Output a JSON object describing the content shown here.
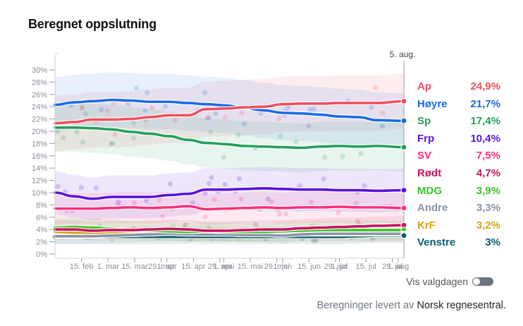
{
  "title": "Beregnet oppslutning",
  "toggle": {
    "label": "Vis valgdagen",
    "on": false
  },
  "credit": {
    "prefix": "Beregninger levert av ",
    "org": "Norsk regnesentral."
  },
  "chart_data": {
    "type": "line",
    "title": "Beregnet oppslutning",
    "xlabel": "",
    "ylabel": "",
    "ylim": [
      0,
      30
    ],
    "yticks": [
      "0%",
      "2%",
      "4%",
      "6%",
      "8%",
      "10%",
      "12%",
      "14%",
      "16%",
      "18%",
      "20%",
      "22%",
      "24%",
      "26%",
      "28%",
      "30%"
    ],
    "x_range_days": [
      0,
      184
    ],
    "xticks": [
      {
        "day": 14,
        "label": "15. feb"
      },
      {
        "day": 28,
        "label": "1. mar"
      },
      {
        "day": 42,
        "label": "15. mar"
      },
      {
        "day": 56,
        "label": "29. mar"
      },
      {
        "day": 59,
        "label": "1. apr"
      },
      {
        "day": 73,
        "label": "15. apr"
      },
      {
        "day": 87,
        "label": "29. apr"
      },
      {
        "day": 89,
        "label": "1. mai"
      },
      {
        "day": 103,
        "label": "15. mai"
      },
      {
        "day": 117,
        "label": "29. mai"
      },
      {
        "day": 120,
        "label": "1. jun"
      },
      {
        "day": 134,
        "label": "15. jun"
      },
      {
        "day": 148,
        "label": "29. jun"
      },
      {
        "day": 150,
        "label": "1. jul"
      },
      {
        "day": 164,
        "label": "15. jul"
      },
      {
        "day": 178,
        "label": "29. jul"
      },
      {
        "day": 181,
        "label": "1. aug"
      }
    ],
    "current_date_label": "5. aug.",
    "current_day": 184,
    "grid": false,
    "legend_position": "right",
    "x": [
      0,
      10,
      20,
      30,
      40,
      50,
      60,
      70,
      80,
      90,
      100,
      110,
      120,
      130,
      140,
      150,
      160,
      170,
      184
    ],
    "series": [
      {
        "name": "Ap",
        "color": "#f04e5e",
        "label": "24,9%",
        "band": 4.5,
        "values": [
          21.3,
          21.5,
          21.9,
          21.9,
          22.0,
          22.3,
          22.6,
          22.6,
          23.6,
          23.7,
          23.9,
          24.0,
          24.4,
          24.5,
          24.5,
          24.6,
          24.6,
          24.6,
          24.9
        ]
      },
      {
        "name": "Høyre",
        "color": "#1a6ae8",
        "label": "21,7%",
        "band": 4.5,
        "values": [
          24.3,
          24.7,
          24.9,
          25.1,
          25.0,
          24.8,
          24.8,
          24.6,
          24.4,
          24.2,
          23.8,
          23.4,
          23.0,
          22.9,
          22.7,
          22.4,
          22.3,
          21.8,
          21.7
        ]
      },
      {
        "name": "Sp",
        "color": "#22a05a",
        "label": "17,4%",
        "band": 4.0,
        "values": [
          20.6,
          20.6,
          20.5,
          20.3,
          19.9,
          19.6,
          19.2,
          18.6,
          18.1,
          17.9,
          17.6,
          17.5,
          17.4,
          17.3,
          17.5,
          17.6,
          17.5,
          17.6,
          17.4
        ]
      },
      {
        "name": "Frp",
        "color": "#5b12de",
        "label": "10,4%",
        "band": 3.5,
        "values": [
          10.0,
          9.4,
          9.0,
          9.3,
          9.3,
          9.3,
          9.6,
          9.8,
          10.5,
          10.5,
          10.6,
          10.7,
          10.6,
          10.5,
          10.5,
          10.4,
          10.4,
          10.3,
          10.4
        ]
      },
      {
        "name": "SV",
        "color": "#ff2d7a",
        "label": "7,5%",
        "band": 2.5,
        "values": [
          7.4,
          7.4,
          7.4,
          7.5,
          7.6,
          7.5,
          7.6,
          7.8,
          7.3,
          7.4,
          7.5,
          7.6,
          7.5,
          7.6,
          7.6,
          7.7,
          7.6,
          7.6,
          7.5
        ]
      },
      {
        "name": "Rødt",
        "color": "#c8135f",
        "label": "4,7%",
        "band": 1.5,
        "values": [
          4.0,
          4.0,
          3.8,
          3.9,
          3.9,
          4.0,
          4.1,
          4.0,
          3.8,
          3.8,
          3.9,
          4.0,
          4.0,
          4.2,
          4.3,
          4.4,
          4.5,
          4.6,
          4.7
        ]
      },
      {
        "name": "MDG",
        "color": "#3cc42a",
        "label": "3,9%",
        "band": 1.5,
        "values": [
          4.3,
          4.4,
          4.3,
          4.1,
          3.9,
          3.8,
          3.7,
          3.6,
          3.7,
          3.6,
          3.6,
          3.6,
          3.7,
          3.8,
          3.9,
          3.9,
          3.9,
          3.9,
          3.9
        ]
      },
      {
        "name": "Andre",
        "color": "#8a93a6",
        "label": "3,3%",
        "band": 1.2,
        "values": [
          2.9,
          2.9,
          2.9,
          3.0,
          3.1,
          3.2,
          3.3,
          3.2,
          3.2,
          3.2,
          3.1,
          3.1,
          3.0,
          3.2,
          3.3,
          3.3,
          3.3,
          3.3,
          3.3
        ]
      },
      {
        "name": "KrF",
        "color": "#d4a417",
        "label": "3,2%",
        "band": 1.2,
        "values": [
          3.6,
          3.5,
          3.4,
          3.4,
          3.3,
          3.3,
          3.3,
          3.2,
          3.2,
          3.2,
          3.2,
          3.2,
          3.2,
          3.2,
          3.2,
          3.2,
          3.2,
          3.2,
          3.2
        ]
      },
      {
        "name": "Venstre",
        "color": "#0d5c6e",
        "label": "3%",
        "band": 1.2,
        "values": [
          2.8,
          2.8,
          2.8,
          2.8,
          2.8,
          2.8,
          2.8,
          2.8,
          2.8,
          2.8,
          2.8,
          2.8,
          2.8,
          2.8,
          2.8,
          2.8,
          2.9,
          3.0,
          3.0
        ]
      }
    ]
  }
}
